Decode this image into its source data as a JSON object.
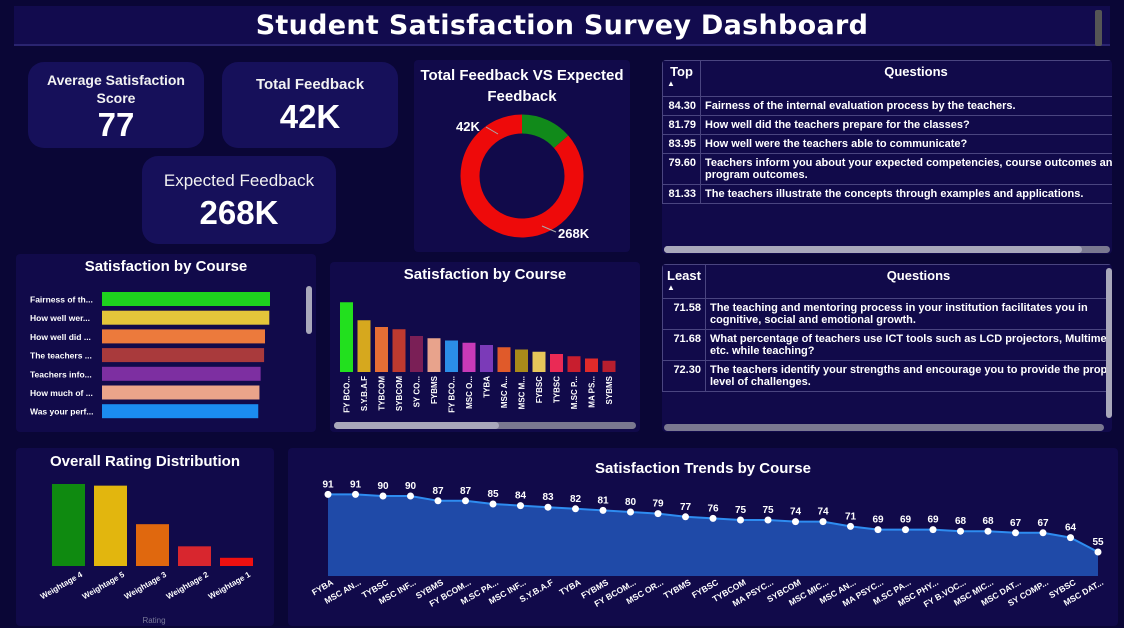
{
  "dashboard": {
    "title": "Student Satisfaction Survey Dashboard"
  },
  "kpis": {
    "avg": {
      "label": "Average Satisfaction Score",
      "value": "77"
    },
    "total": {
      "label": "Total Feedback",
      "value": "42K"
    },
    "expected": {
      "label": "Expected Feedback",
      "value": "268K"
    }
  },
  "top_table": {
    "col1": "Top",
    "col2": "Questions",
    "rows": [
      {
        "score": "84.30",
        "q": "Fairness of the internal evaluation process by the teachers."
      },
      {
        "score": "81.79",
        "q": "How well did the teachers prepare for the classes?"
      },
      {
        "score": "83.95",
        "q": "How well were the teachers able to communicate?"
      },
      {
        "score": "79.60",
        "q": "Teachers inform you about your expected competencies, course outcomes and program outcomes."
      },
      {
        "score": "81.33",
        "q": "The teachers illustrate the concepts through examples and applications."
      }
    ]
  },
  "least_table": {
    "col1": "Least",
    "col2": "Questions",
    "rows": [
      {
        "score": "71.58",
        "q": "The teaching and mentoring process in your institution facilitates you in cognitive, social and emotional growth."
      },
      {
        "score": "71.68",
        "q": "What percentage of teachers use ICT tools such as LCD projectors, Multimedia, etc. while teaching?"
      },
      {
        "score": "72.30",
        "q": "The teachers identify your strengths and encourage you to provide the proper level of challenges."
      }
    ]
  },
  "chart_data": [
    {
      "type": "pie",
      "title": "Total Feedback VS Expected Feedback",
      "labels": [
        "42K",
        "268K"
      ],
      "values": [
        42,
        268
      ],
      "colors": [
        "#118a1a",
        "#ee0a0a"
      ]
    },
    {
      "type": "bar",
      "orientation": "horizontal",
      "title": "Satisfaction by Course",
      "categories": [
        "Fairness of th...",
        "How well wer...",
        "How well did ...",
        "The teachers ...",
        "Teachers info...",
        "How much of ...",
        "Was your perf..."
      ],
      "values": [
        84.3,
        83.95,
        81.79,
        81.33,
        79.6,
        79.0,
        78.4
      ],
      "colors": [
        "#1ed21e",
        "#e4c53a",
        "#ec7a3c",
        "#a93a3c",
        "#7d2fa1",
        "#eaa48a",
        "#1b8cf0"
      ]
    },
    {
      "type": "bar",
      "title": "Satisfaction by Course",
      "categories": [
        "FY BCO...",
        "S.Y.B.A.F",
        "TYBCOM",
        "SYBCOM",
        "SY CO...",
        "FYBMS",
        "FY BCO...",
        "MSC O...",
        "TYBA",
        "MSC A...",
        "MSC M...",
        "FYBSC",
        "TYBSC",
        "M.SC P...",
        "MA PS...",
        "SYBMS"
      ],
      "values": [
        91,
        83,
        80,
        79,
        76,
        75,
        74,
        73,
        72,
        71,
        70,
        69,
        68,
        67,
        66,
        65
      ],
      "colors": [
        "#22e01e",
        "#d6a81e",
        "#e66e35",
        "#bf3a2f",
        "#7a1f56",
        "#e8a38c",
        "#2b8de8",
        "#c83ab8",
        "#7b3ab8",
        "#e05a2a",
        "#a98a1a",
        "#e6c65a",
        "#ea2a55",
        "#c81e2e",
        "#e02a2a",
        "#b81e2e"
      ],
      "ylim": [
        60,
        92
      ]
    },
    {
      "type": "bar",
      "title": "Overall Rating Distribution",
      "categories": [
        "Weightage 4",
        "Weightage 5",
        "Weightage 3",
        "Weightage 2",
        "Weightage 1"
      ],
      "values": [
        100,
        98,
        51,
        24,
        10
      ],
      "colors": [
        "#0f8a10",
        "#e2b60e",
        "#e0680e",
        "#d8262e",
        "#f01010"
      ],
      "xlabel": "Rating"
    },
    {
      "type": "area",
      "title": "Satisfaction Trends by Course",
      "categories": [
        "FYBA",
        "MSC AN...",
        "TYBSC",
        "MSC INF...",
        "SYBMS",
        "FY BCOM...",
        "M.SC PA...",
        "MSC INF...",
        "S.Y.B.A.F",
        "TYBA",
        "FYBMS",
        "FY BCOM...",
        "MSC OR...",
        "TYBMS",
        "FYBSC",
        "TYBCOM",
        "MA PSYC...",
        "SYBCOM",
        "MSC MIC...",
        "MSC AN...",
        "MA PSYC...",
        "M.SC PA...",
        "MSC PHY...",
        "FY B.VOC...",
        "MSC MIC...",
        "MSC DAT...",
        "SY COMP...",
        "SYBSC",
        "MSC DAT..."
      ],
      "values": [
        91,
        91,
        90,
        90,
        87,
        87,
        85,
        84,
        83,
        82,
        81,
        80,
        79,
        77,
        76,
        75,
        75,
        74,
        74,
        71,
        69,
        69,
        69,
        68,
        68,
        67,
        67,
        64,
        55
      ],
      "ylim": [
        40,
        95
      ]
    }
  ]
}
